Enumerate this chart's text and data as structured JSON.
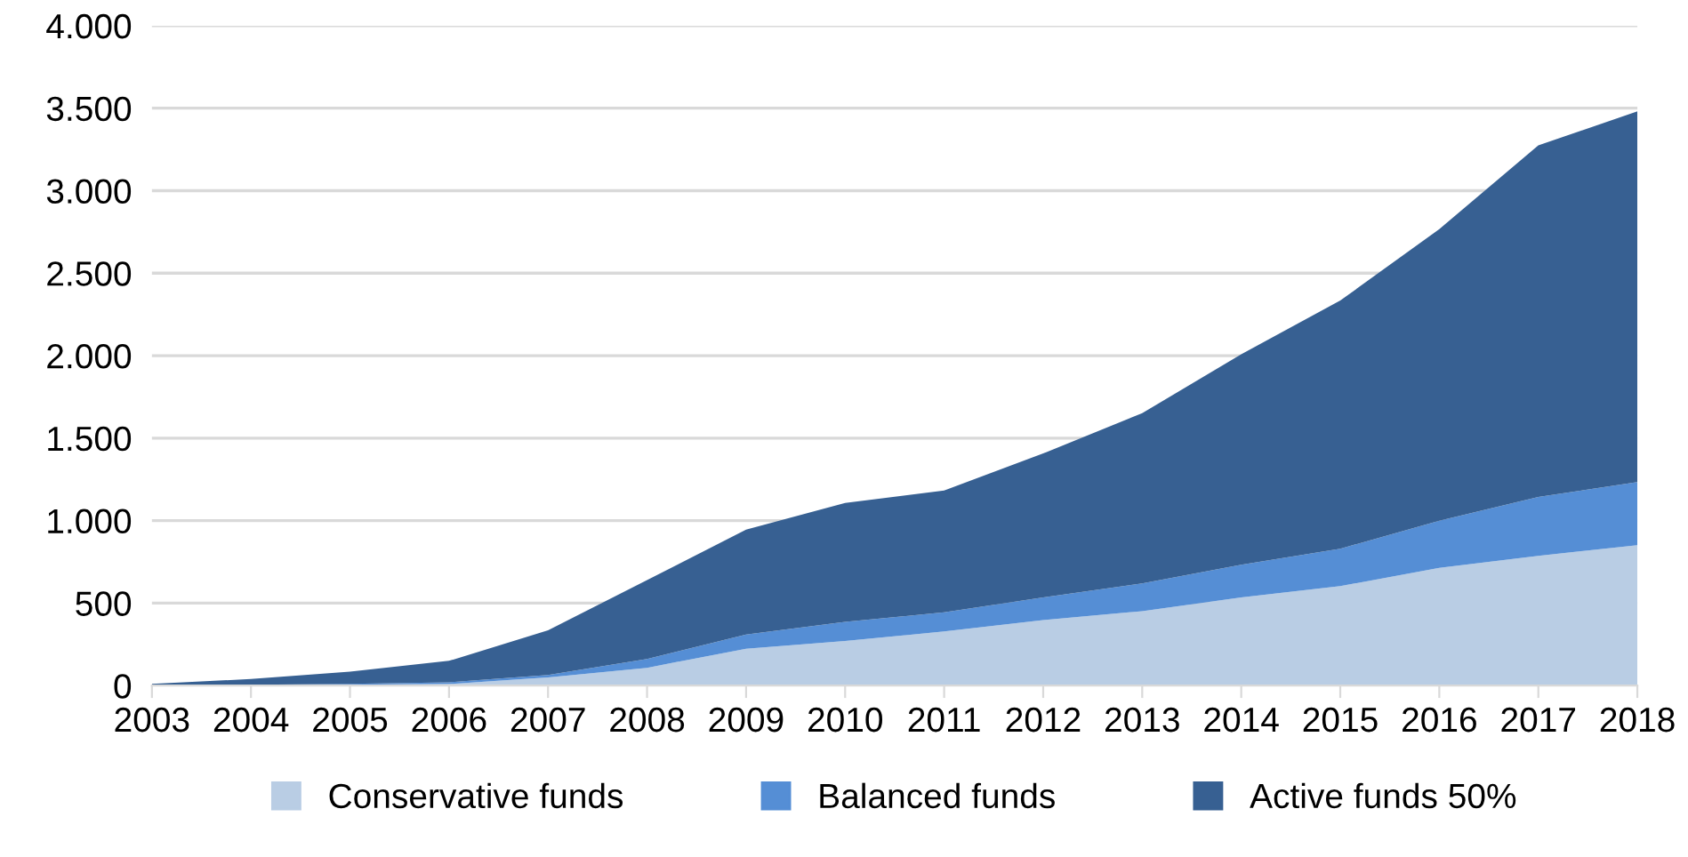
{
  "chart_data": {
    "type": "area",
    "stacked": true,
    "categories": [
      "2003",
      "2004",
      "2005",
      "2006",
      "2007",
      "2008",
      "2009",
      "2010",
      "2011",
      "2012",
      "2013",
      "2014",
      "2015",
      "2016",
      "2017",
      "2018"
    ],
    "series": [
      {
        "name": "Conservative funds",
        "color": "#b9cde4",
        "values": [
          0,
          3,
          5,
          10,
          50,
          108,
          224,
          270,
          328,
          397,
          451,
          534,
          603,
          714,
          787,
          851
        ]
      },
      {
        "name": "Balanced funds",
        "color": "#558ed5",
        "values": [
          0,
          2,
          5,
          10,
          15,
          54,
          86,
          116,
          116,
          137,
          169,
          198,
          227,
          285,
          356,
          383
        ]
      },
      {
        "name": "Active funds 50%",
        "color": "#376092",
        "values": [
          10,
          35,
          75,
          130,
          270,
          478,
          635,
          721,
          739,
          873,
          1032,
          1277,
          1504,
          1768,
          2132,
          2247
        ]
      }
    ],
    "ylim": [
      0,
      4000
    ],
    "yticks": [
      0,
      {
        "value": 500,
        "label": "500"
      },
      {
        "value": 1000,
        "label": "1.000"
      },
      {
        "value": 1500,
        "label": "1.500"
      },
      {
        "value": 2000,
        "label": "2.000"
      },
      {
        "value": 2500,
        "label": "2.500"
      },
      {
        "value": 3000,
        "label": "3.000"
      },
      {
        "value": 3500,
        "label": "3.500"
      },
      {
        "value": 4000,
        "label": "4.000"
      }
    ],
    "grid": "y",
    "legend": "bottom"
  }
}
